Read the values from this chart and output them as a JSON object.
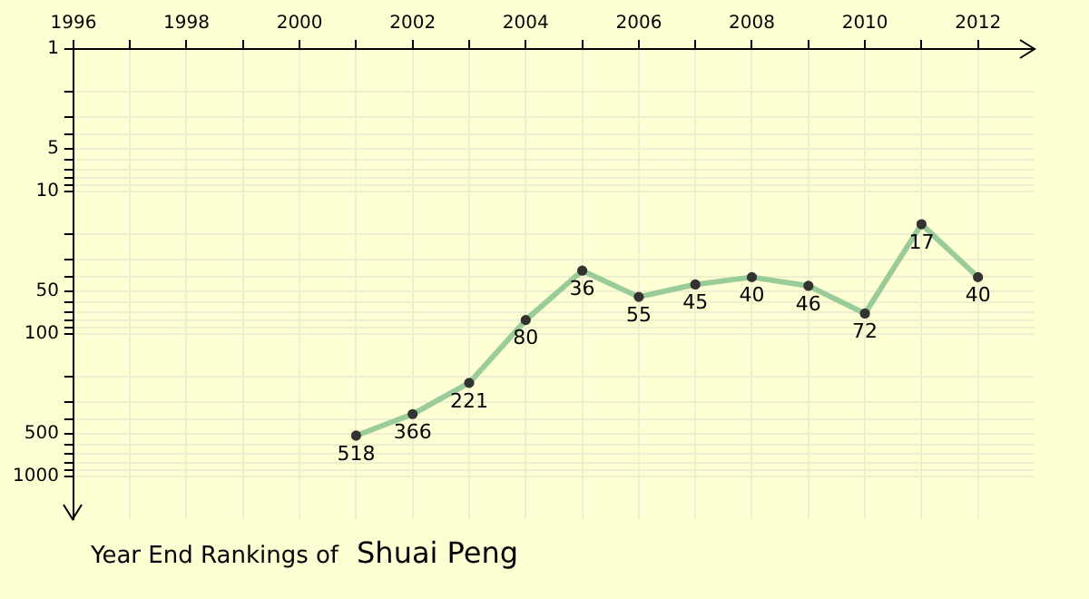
{
  "chart_data": {
    "type": "line",
    "title": "Year End Rankings of",
    "subtitle": "Shuai Peng",
    "x": [
      2001,
      2002,
      2003,
      2004,
      2005,
      2006,
      2007,
      2008,
      2009,
      2010,
      2011,
      2012
    ],
    "series": [
      {
        "color": "#99cc99",
        "values": [
          518,
          366,
          221,
          80,
          36,
          55,
          45,
          40,
          46,
          72,
          17,
          40
        ]
      }
    ],
    "xlim": [
      1996,
      2013
    ],
    "xticks": [
      1996,
      {
        "value": 1997,
        "label": null
      },
      1998,
      {
        "value": 1999,
        "label": null
      },
      2000,
      {
        "value": 2001,
        "label": null
      },
      2002,
      {
        "value": 2003,
        "label": null
      },
      2004,
      {
        "value": 2005,
        "label": null
      },
      2006,
      {
        "value": 2007,
        "label": null
      },
      2008,
      {
        "value": 2009,
        "label": null
      },
      2010,
      {
        "value": 2011,
        "label": null
      },
      2012
    ],
    "ylim": [
      2000,
      1
    ],
    "yticks": [
      1,
      {
        "value": 2,
        "label": null
      },
      {
        "value": 3,
        "label": null
      },
      {
        "value": 4,
        "label": null
      },
      5,
      {
        "value": 6,
        "label": null
      },
      {
        "value": 7,
        "label": null
      },
      {
        "value": 8,
        "label": null
      },
      {
        "value": 9,
        "label": null
      },
      10,
      {
        "value": 20,
        "label": null
      },
      {
        "value": 30,
        "label": null
      },
      {
        "value": 40,
        "label": null
      },
      50,
      {
        "value": 60,
        "label": null
      },
      {
        "value": 70,
        "label": null
      },
      {
        "value": 80,
        "label": null
      },
      {
        "value": 90,
        "label": null
      },
      100,
      {
        "value": 200,
        "label": null
      },
      {
        "value": 300,
        "label": null
      },
      {
        "value": 400,
        "label": null
      },
      500,
      {
        "value": 600,
        "label": null
      },
      {
        "value": 700,
        "label": null
      },
      {
        "value": 800,
        "label": null
      },
      {
        "value": 900,
        "label": null
      },
      1000
    ],
    "log": true,
    "grid": true,
    "marker": "circle",
    "line_style": "solid",
    "data_labels": true,
    "legend": false
  }
}
